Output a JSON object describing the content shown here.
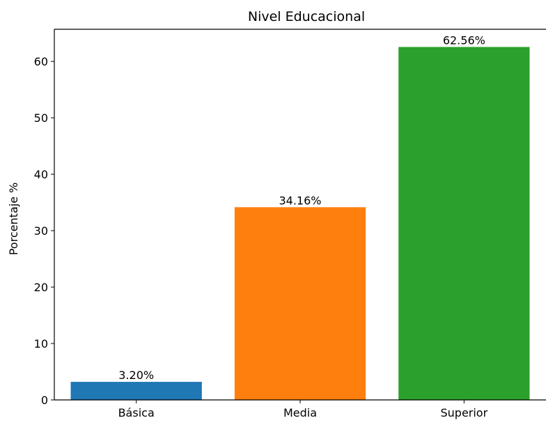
{
  "chart_data": {
    "type": "bar",
    "title": "Nivel Educacional",
    "xlabel": "",
    "ylabel": "Porcentaje %",
    "categories": [
      "Básica",
      "Media",
      "Superior"
    ],
    "values": [
      3.2,
      34.16,
      62.56
    ],
    "data_labels": [
      "3.20%",
      "34.16%",
      "62.56%"
    ],
    "colors": [
      "#1f77b4",
      "#ff7f0e",
      "#2ca02c"
    ],
    "ylim": [
      0,
      65.7
    ],
    "yticks": [
      0,
      10,
      20,
      30,
      40,
      50,
      60
    ],
    "grid": false,
    "legend": "none"
  }
}
